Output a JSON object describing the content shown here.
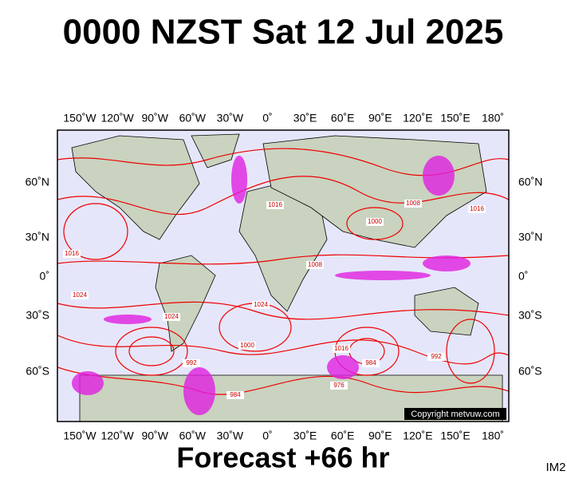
{
  "header": {
    "title": "0000 NZST Sat 12 Jul 2025"
  },
  "map": {
    "lon_labels": [
      "150˚W",
      "120˚W",
      "90˚W",
      "60˚W",
      "30˚W",
      "0˚",
      "30˚E",
      "60˚E",
      "90˚E",
      "120˚E",
      "150˚E",
      "180˚"
    ],
    "lat_labels": [
      "60˚N",
      "30˚N",
      "0˚",
      "30˚S",
      "60˚S"
    ],
    "isobar_labels": [
      "1016",
      "1024",
      "1008",
      "1000",
      "1008",
      "1016",
      "1024",
      "1000",
      "1016",
      "984",
      "992",
      "984",
      "976",
      "992",
      "1016",
      "1024"
    ],
    "copyright": "Copyright metvuw.com"
  },
  "footer": {
    "forecast": "Forecast +66 hr",
    "code": "IM2"
  }
}
